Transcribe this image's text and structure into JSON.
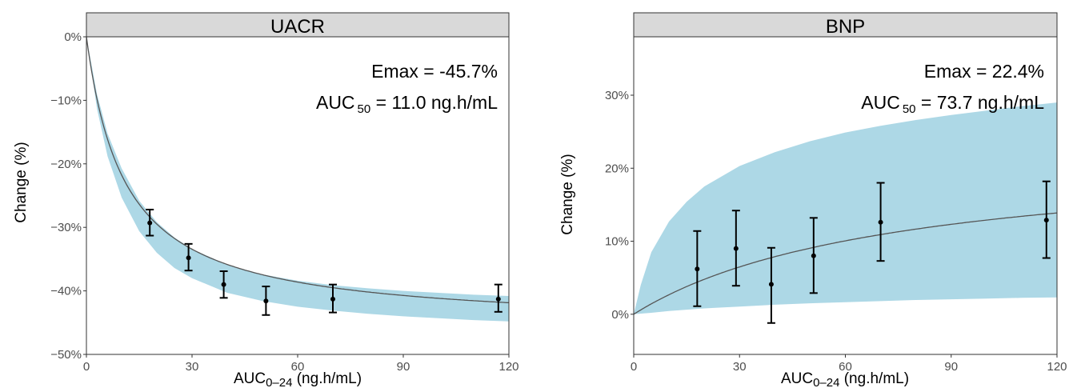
{
  "chart_data": [
    {
      "type": "line",
      "panel_title": "UACR",
      "xlabel_main": "AUC",
      "xlabel_sub": "0–24",
      "xlabel_rest": " (ng.h/mL)",
      "ylabel": "Change (%)",
      "xlim": [
        0,
        120
      ],
      "ylim": [
        -50,
        0
      ],
      "x_ticks": [
        0,
        30,
        60,
        90,
        120
      ],
      "x_tick_labels": [
        "0",
        "30",
        "60",
        "90",
        "120"
      ],
      "y_ticks": [
        0,
        -10,
        -20,
        -30,
        -40,
        -50
      ],
      "y_tick_labels": [
        "0%",
        "−10%",
        "−20%",
        "−30%",
        "−40%",
        "−50%"
      ],
      "annotation_line1": "Emax = -45.7%",
      "annotation_line2_main": "AUC",
      "annotation_line2_sub": "50",
      "annotation_line2_rest": " = 11.0 ng.h/mL",
      "model": {
        "emax": -45.7,
        "auc50": 11.0
      },
      "ribbon_color": "#add8e6",
      "line_color": "#555555",
      "ribbon_upper": [
        [
          0,
          0
        ],
        [
          3,
          -9
        ],
        [
          6,
          -15.2
        ],
        [
          10,
          -20.7
        ],
        [
          15,
          -25.8
        ],
        [
          20,
          -29.2
        ],
        [
          25,
          -31.6
        ],
        [
          30,
          -33.4
        ],
        [
          40,
          -35.9
        ],
        [
          50,
          -37.4
        ],
        [
          60,
          -38.4
        ],
        [
          70,
          -39.1
        ],
        [
          80,
          -39.6
        ],
        [
          90,
          -40
        ],
        [
          100,
          -40.3
        ],
        [
          110,
          -40.6
        ],
        [
          120,
          -40.8
        ]
      ],
      "ribbon_lower": [
        [
          0,
          0
        ],
        [
          3,
          -11.3
        ],
        [
          6,
          -18.8
        ],
        [
          10,
          -25.3
        ],
        [
          15,
          -30.6
        ],
        [
          20,
          -34
        ],
        [
          25,
          -36.4
        ],
        [
          30,
          -38
        ],
        [
          40,
          -40.3
        ],
        [
          50,
          -41.6
        ],
        [
          60,
          -42.5
        ],
        [
          70,
          -43.1
        ],
        [
          80,
          -43.6
        ],
        [
          90,
          -44
        ],
        [
          100,
          -44.3
        ],
        [
          110,
          -44.6
        ],
        [
          120,
          -44.8
        ]
      ],
      "points": [
        {
          "x": 18,
          "y": -29.3,
          "lo": -31.3,
          "hi": -27.2
        },
        {
          "x": 29,
          "y": -34.8,
          "lo": -36.8,
          "hi": -32.6
        },
        {
          "x": 39,
          "y": -39.0,
          "lo": -41.1,
          "hi": -36.9
        },
        {
          "x": 51,
          "y": -41.6,
          "lo": -43.8,
          "hi": -39.3
        },
        {
          "x": 70,
          "y": -41.3,
          "lo": -43.4,
          "hi": -39.0
        },
        {
          "x": 117,
          "y": -41.3,
          "lo": -43.3,
          "hi": -39.0
        }
      ]
    },
    {
      "type": "line",
      "panel_title": "BNP",
      "xlabel_main": "AUC",
      "xlabel_sub": "0–24",
      "xlabel_rest": " (ng.h/mL)",
      "ylabel": "Change (%)",
      "xlim": [
        0,
        120
      ],
      "ylim": [
        -5.5,
        38
      ],
      "x_ticks": [
        0,
        30,
        60,
        90,
        120
      ],
      "x_tick_labels": [
        "0",
        "30",
        "60",
        "90",
        "120"
      ],
      "y_ticks": [
        0,
        10,
        20,
        30
      ],
      "y_tick_labels": [
        "0%",
        "10%",
        "20%",
        "30%"
      ],
      "annotation_line1": "Emax = 22.4%",
      "annotation_line2_main": "AUC",
      "annotation_line2_sub": "50",
      "annotation_line2_rest": " = 73.7 ng.h/mL",
      "model": {
        "emax": 22.4,
        "auc50": 73.7
      },
      "ribbon_color": "#add8e6",
      "line_color": "#555555",
      "ribbon_upper": [
        [
          0,
          0
        ],
        [
          2,
          4
        ],
        [
          5,
          8.5
        ],
        [
          10,
          12.7
        ],
        [
          15,
          15.4
        ],
        [
          20,
          17.5
        ],
        [
          30,
          20.3
        ],
        [
          40,
          22.2
        ],
        [
          50,
          23.7
        ],
        [
          60,
          24.9
        ],
        [
          70,
          25.8
        ],
        [
          80,
          26.6
        ],
        [
          90,
          27.3
        ],
        [
          100,
          27.9
        ],
        [
          110,
          28.5
        ],
        [
          120,
          29
        ]
      ],
      "ribbon_lower": [
        [
          0,
          0
        ],
        [
          5,
          0.2
        ],
        [
          10,
          0.45
        ],
        [
          20,
          0.8
        ],
        [
          30,
          1.05
        ],
        [
          40,
          1.3
        ],
        [
          50,
          1.5
        ],
        [
          60,
          1.65
        ],
        [
          70,
          1.8
        ],
        [
          80,
          1.95
        ],
        [
          90,
          2.05
        ],
        [
          100,
          2.15
        ],
        [
          110,
          2.25
        ],
        [
          120,
          2.3
        ]
      ],
      "points": [
        {
          "x": 18,
          "y": 6.2,
          "lo": 1.1,
          "hi": 11.4
        },
        {
          "x": 29,
          "y": 9.0,
          "lo": 3.9,
          "hi": 14.2
        },
        {
          "x": 39,
          "y": 4.1,
          "lo": -1.2,
          "hi": 9.1
        },
        {
          "x": 51,
          "y": 8.0,
          "lo": 2.9,
          "hi": 13.2
        },
        {
          "x": 70,
          "y": 12.6,
          "lo": 7.3,
          "hi": 18.0
        },
        {
          "x": 117,
          "y": 12.9,
          "lo": 7.7,
          "hi": 18.2
        }
      ]
    }
  ]
}
